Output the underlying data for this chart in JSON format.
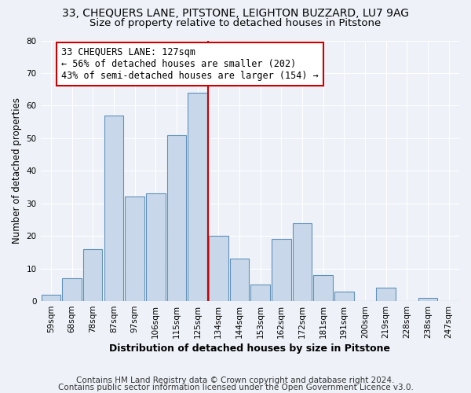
{
  "title1": "33, CHEQUERS LANE, PITSTONE, LEIGHTON BUZZARD, LU7 9AG",
  "title2": "Size of property relative to detached houses in Pitstone",
  "xlabel": "Distribution of detached houses by size in Pitstone",
  "ylabel": "Number of detached properties",
  "bin_labels": [
    "59sqm",
    "68sqm",
    "78sqm",
    "87sqm",
    "97sqm",
    "106sqm",
    "115sqm",
    "125sqm",
    "134sqm",
    "144sqm",
    "153sqm",
    "162sqm",
    "172sqm",
    "181sqm",
    "191sqm",
    "200sqm",
    "219sqm",
    "228sqm",
    "238sqm",
    "247sqm"
  ],
  "bar_heights": [
    2,
    7,
    16,
    57,
    32,
    33,
    51,
    64,
    20,
    13,
    5,
    19,
    24,
    8,
    3,
    0,
    4,
    0,
    1,
    0
  ],
  "bar_color": "#c8d8ea",
  "bar_edge_color": "#6090b8",
  "vline_x": 7.5,
  "vline_color": "#cc0000",
  "annotation_text": "33 CHEQUERS LANE: 127sqm\n← 56% of detached houses are smaller (202)\n43% of semi-detached houses are larger (154) →",
  "annotation_box_color": "#ffffff",
  "annotation_box_edge": "#cc0000",
  "ylim": [
    0,
    80
  ],
  "yticks": [
    0,
    10,
    20,
    30,
    40,
    50,
    60,
    70,
    80
  ],
  "footer1": "Contains HM Land Registry data © Crown copyright and database right 2024.",
  "footer2": "Contains public sector information licensed under the Open Government Licence v3.0.",
  "background_color": "#eef2f8",
  "grid_color": "#ffffff",
  "title1_fontsize": 10,
  "title2_fontsize": 9.5,
  "xlabel_fontsize": 9,
  "ylabel_fontsize": 8.5,
  "tick_fontsize": 7.5,
  "footer_fontsize": 7.5,
  "annot_fontsize": 8.5
}
